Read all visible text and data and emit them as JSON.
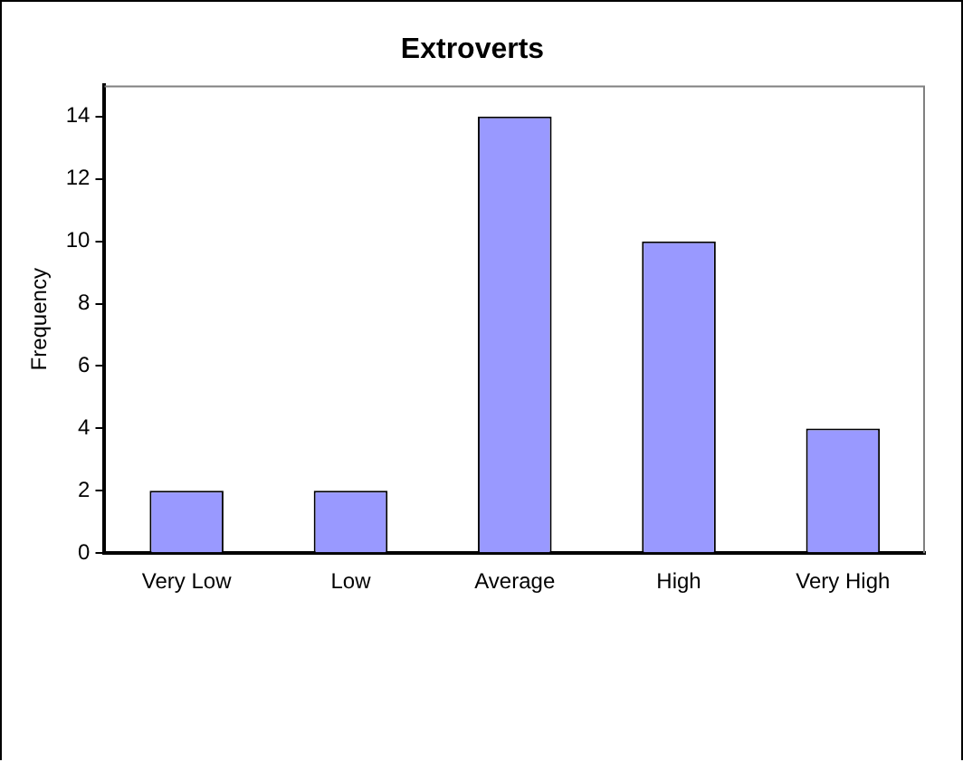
{
  "chart_data": {
    "type": "bar",
    "title": "Extroverts",
    "ylabel": "Frequency",
    "categories": [
      "Very Low",
      "Low",
      "Average",
      "High",
      "Very High"
    ],
    "values": [
      2,
      2,
      14,
      10,
      4
    ],
    "color": "#9999ff",
    "ylim": [
      0,
      15
    ],
    "yticks": [
      0,
      2,
      4,
      6,
      8,
      10,
      12,
      14
    ],
    "grid": false,
    "legend": false
  }
}
